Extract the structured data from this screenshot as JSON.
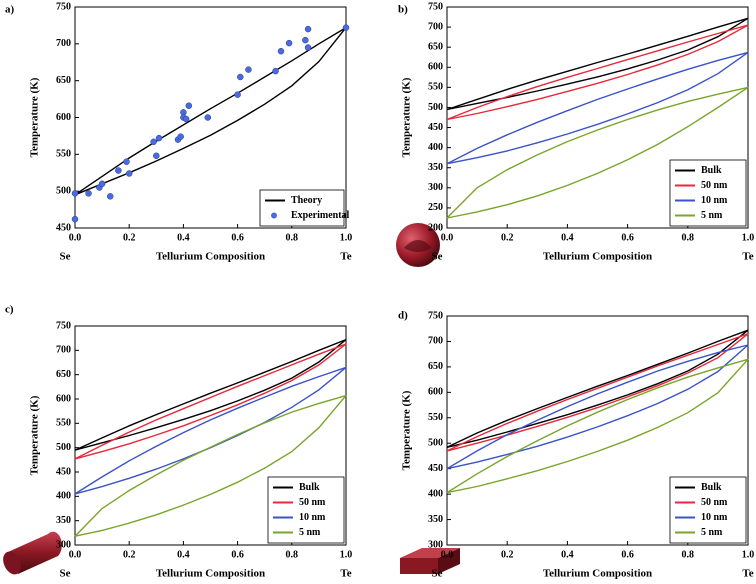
{
  "chart_data": [
    {
      "type": "line",
      "panel_label": "a)",
      "xlabel": "Tellurium Composition",
      "ylabel": "Temperature (K)",
      "x_start_label": "Se",
      "x_end_label": "Te",
      "x": [
        0,
        0.1,
        0.2,
        0.3,
        0.4,
        0.5,
        0.6,
        0.7,
        0.8,
        0.9,
        1
      ],
      "xlim": [
        0,
        1
      ],
      "xticks": [
        {
          "value": 0,
          "label": "0.0"
        },
        0.2,
        0.4,
        0.6,
        0.8,
        {
          "value": 1,
          "label": "1.0"
        }
      ],
      "ylim": [
        450,
        750
      ],
      "yticks": [
        450,
        500,
        550,
        600,
        650,
        700,
        750
      ],
      "legend": "lower right",
      "series": [
        {
          "name": "Theory",
          "color": "#000000",
          "curves": [
            {
              "values": [
                495,
                520,
                545,
                568,
                590,
                612,
                633,
                655,
                677,
                700,
                722
              ]
            },
            {
              "values": [
                495,
                510,
                525,
                541,
                558,
                576,
                596,
                618,
                643,
                676,
                722
              ]
            }
          ]
        },
        {
          "name": "Experimental",
          "color": "#4a6ae0",
          "marker": "circle",
          "x": [
            0,
            0,
            0.05,
            0.09,
            0.1,
            0.13,
            0.16,
            0.19,
            0.2,
            0.29,
            0.3,
            0.31,
            0.38,
            0.39,
            0.4,
            0.4,
            0.41,
            0.42,
            0.49,
            0.6,
            0.61,
            0.64,
            0.74,
            0.76,
            0.79,
            0.85,
            0.86,
            0.86,
            1
          ],
          "values": [
            462,
            497,
            497,
            505,
            510,
            493,
            528,
            540,
            524,
            567,
            548,
            572,
            570,
            574,
            607,
            600,
            598,
            616,
            600,
            631,
            655,
            665,
            663,
            690,
            701,
            705,
            720,
            695,
            722
          ]
        }
      ]
    },
    {
      "type": "line",
      "panel_label": "b)",
      "xlabel": "Tellurium Composition",
      "ylabel": "Temperature (K)",
      "x_start_label": "Se",
      "x_end_label": "Te",
      "x": [
        0,
        0.1,
        0.2,
        0.3,
        0.4,
        0.5,
        0.6,
        0.7,
        0.8,
        0.9,
        1
      ],
      "xlim": [
        0,
        1
      ],
      "xticks": [
        {
          "value": 0,
          "label": "0.0"
        },
        0.2,
        0.4,
        0.6,
        0.8,
        {
          "value": 1,
          "label": "1.0"
        }
      ],
      "ylim": [
        200,
        750
      ],
      "yticks": [
        200,
        250,
        300,
        350,
        400,
        450,
        500,
        550,
        600,
        650,
        700,
        750
      ],
      "legend": "lower right",
      "series": [
        {
          "name": "Bulk",
          "color": "#000000",
          "curves": [
            {
              "values": [
                495,
                520,
                545,
                568,
                590,
                612,
                633,
                655,
                677,
                700,
                722
              ]
            },
            {
              "values": [
                495,
                510,
                525,
                541,
                558,
                576,
                596,
                618,
                643,
                676,
                722
              ]
            }
          ]
        },
        {
          "name": "50 nm",
          "color": "#e8283a",
          "curves": [
            {
              "values": [
                470,
                500,
                527,
                552,
                575,
                597,
                619,
                641,
                663,
                684,
                705
              ]
            },
            {
              "values": [
                470,
                485,
                502,
                520,
                540,
                560,
                582,
                606,
                632,
                664,
                705
              ]
            }
          ]
        },
        {
          "name": "10 nm",
          "color": "#3a53c7",
          "curves": [
            {
              "values": [
                360,
                398,
                432,
                463,
                492,
                520,
                546,
                571,
                595,
                617,
                637
              ]
            },
            {
              "values": [
                360,
                375,
                392,
                412,
                434,
                458,
                484,
                512,
                544,
                584,
                637
              ]
            }
          ]
        },
        {
          "name": "5 nm",
          "color": "#7aa52a",
          "curves": [
            {
              "values": [
                225,
                300,
                345,
                382,
                415,
                444,
                470,
                494,
                515,
                533,
                550
              ]
            },
            {
              "values": [
                225,
                240,
                258,
                280,
                306,
                336,
                370,
                408,
                452,
                500,
                550
              ]
            }
          ]
        }
      ]
    },
    {
      "type": "line",
      "panel_label": "c)",
      "xlabel": "Tellurium Composition",
      "ylabel": "Temperature (K)",
      "x_start_label": "Se",
      "x_end_label": "Te",
      "x": [
        0,
        0.1,
        0.2,
        0.3,
        0.4,
        0.5,
        0.6,
        0.7,
        0.8,
        0.9,
        1
      ],
      "xlim": [
        0,
        1
      ],
      "xticks": [
        {
          "value": 0,
          "label": "0.0"
        },
        0.2,
        0.4,
        0.6,
        0.8,
        {
          "value": 1,
          "label": "1.0"
        }
      ],
      "ylim": [
        300,
        750
      ],
      "yticks": [
        300,
        350,
        400,
        450,
        500,
        550,
        600,
        650,
        700,
        750
      ],
      "legend": "lower right",
      "series": [
        {
          "name": "Bulk",
          "color": "#000000",
          "curves": [
            {
              "values": [
                495,
                520,
                545,
                568,
                590,
                612,
                633,
                655,
                677,
                700,
                722
              ]
            },
            {
              "values": [
                495,
                510,
                525,
                541,
                558,
                576,
                596,
                618,
                643,
                676,
                722
              ]
            }
          ]
        },
        {
          "name": "50 nm",
          "color": "#e8283a",
          "curves": [
            {
              "values": [
                477,
                505,
                532,
                557,
                580,
                603,
                626,
                648,
                670,
                692,
                713
              ]
            },
            {
              "values": [
                477,
                492,
                508,
                526,
                545,
                566,
                588,
                612,
                638,
                670,
                713
              ]
            }
          ]
        },
        {
          "name": "10 nm",
          "color": "#3a53c7",
          "curves": [
            {
              "values": [
                405,
                440,
                473,
                503,
                531,
                557,
                581,
                604,
                626,
                646,
                665
              ]
            },
            {
              "values": [
                405,
                420,
                437,
                456,
                477,
                500,
                525,
                552,
                583,
                619,
                665
              ]
            }
          ]
        },
        {
          "name": "5 nm",
          "color": "#7aa52a",
          "curves": [
            {
              "values": [
                318,
                375,
                412,
                444,
                474,
                501,
                527,
                551,
                573,
                591,
                607
              ]
            },
            {
              "values": [
                318,
                330,
                345,
                362,
                382,
                404,
                429,
                458,
                492,
                541,
                607
              ]
            }
          ]
        }
      ]
    },
    {
      "type": "line",
      "panel_label": "d)",
      "xlabel": "Tellurium Composition",
      "ylabel": "Temperature (K)",
      "x_start_label": "Se",
      "x_end_label": "Te",
      "x": [
        0,
        0.1,
        0.2,
        0.3,
        0.4,
        0.5,
        0.6,
        0.7,
        0.8,
        0.9,
        1
      ],
      "xlim": [
        0,
        1
      ],
      "xticks": [
        {
          "value": 0,
          "label": "0.0"
        },
        0.2,
        0.4,
        0.6,
        0.8,
        {
          "value": 1,
          "label": "1.0"
        }
      ],
      "ylim": [
        300,
        750
      ],
      "yticks": [
        300,
        350,
        400,
        450,
        500,
        550,
        600,
        650,
        700,
        750
      ],
      "legend": "lower right",
      "series": [
        {
          "name": "Bulk",
          "color": "#000000",
          "curves": [
            {
              "values": [
                492,
                520,
                545,
                568,
                590,
                612,
                633,
                655,
                677,
                700,
                722
              ]
            },
            {
              "values": [
                492,
                506,
                522,
                539,
                556,
                575,
                595,
                617,
                642,
                675,
                722
              ]
            }
          ]
        },
        {
          "name": "50 nm",
          "color": "#e8283a",
          "curves": [
            {
              "values": [
                485,
                513,
                539,
                563,
                586,
                608,
                630,
                652,
                673,
                694,
                715
              ]
            },
            {
              "values": [
                485,
                500,
                516,
                533,
                551,
                570,
                591,
                613,
                638,
                668,
                715
              ]
            }
          ]
        },
        {
          "name": "10 nm",
          "color": "#3a53c7",
          "curves": [
            {
              "values": [
                450,
                485,
                517,
                545,
                572,
                597,
                620,
                642,
                661,
                678,
                693
              ]
            },
            {
              "values": [
                450,
                463,
                478,
                494,
                512,
                532,
                554,
                578,
                606,
                641,
                693
              ]
            }
          ]
        },
        {
          "name": "5 nm",
          "color": "#7aa52a",
          "curves": [
            {
              "values": [
                403,
                440,
                474,
                505,
                534,
                561,
                586,
                609,
                630,
                648,
                665
              ]
            },
            {
              "values": [
                403,
                415,
                430,
                446,
                464,
                484,
                506,
                531,
                560,
                599,
                665
              ]
            }
          ]
        }
      ]
    }
  ]
}
